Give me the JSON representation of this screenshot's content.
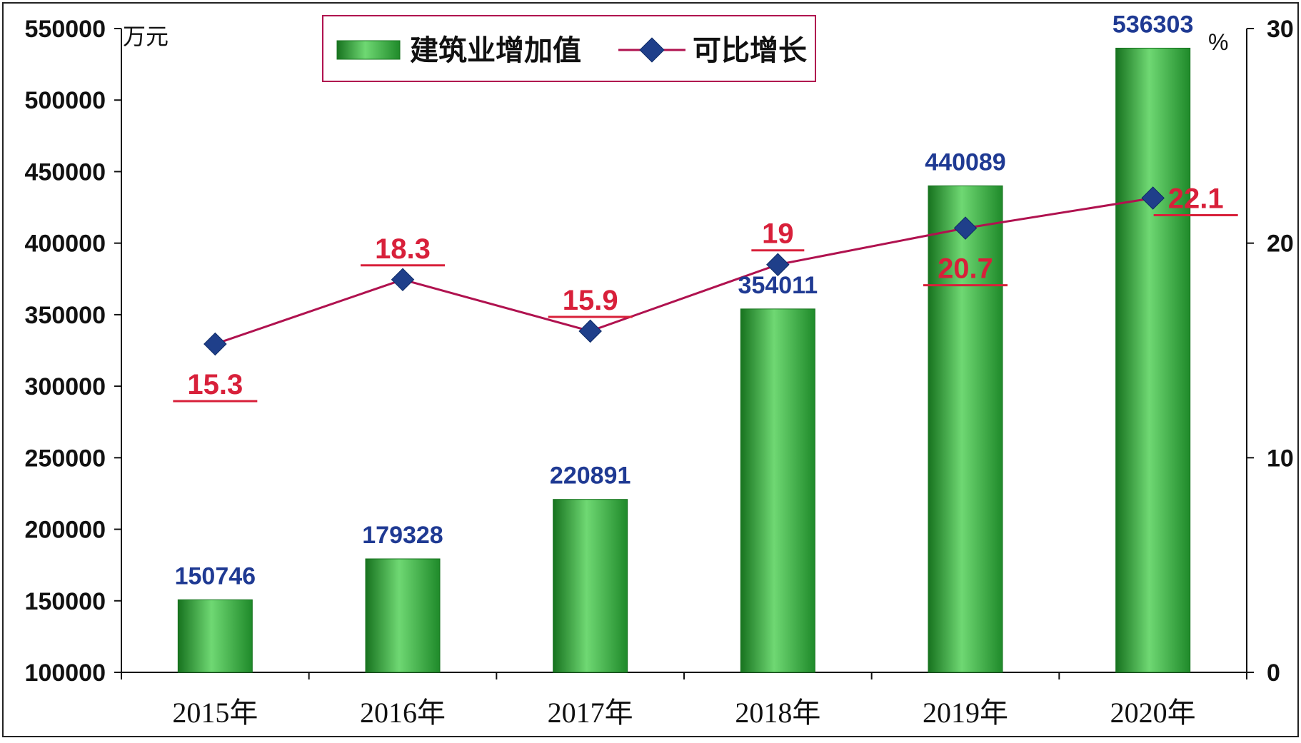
{
  "chart_data": {
    "type": "bar",
    "categories": [
      "2015年",
      "2016年",
      "2017年",
      "2018年",
      "2019年",
      "2020年"
    ],
    "series": [
      {
        "name": "建筑业增加值",
        "type": "bar",
        "axis": "left",
        "values": [
          150746,
          179328,
          220891,
          354011,
          440089,
          536303
        ]
      },
      {
        "name": "可比增长",
        "type": "line",
        "axis": "right",
        "values": [
          15.3,
          18.3,
          15.9,
          19,
          20.7,
          22.1
        ]
      }
    ],
    "bar_labels": [
      "150746",
      "179328",
      "220891",
      "354011",
      "440089",
      "536303"
    ],
    "growth_labels": [
      "15.3",
      "18.3",
      "15.9",
      "19",
      "20.7",
      "22.1"
    ],
    "left_axis": {
      "unit": "万元",
      "range": [
        100000,
        550000
      ],
      "ticks": [
        100000,
        150000,
        200000,
        250000,
        300000,
        350000,
        400000,
        450000,
        500000,
        550000
      ],
      "tick_labels": [
        "100000",
        "150000",
        "200000",
        "250000",
        "300000",
        "350000",
        "400000",
        "450000",
        "500000",
        "550000"
      ]
    },
    "right_axis": {
      "unit": "%",
      "range": [
        0,
        30
      ],
      "ticks": [
        0,
        10,
        20,
        30
      ],
      "tick_labels": [
        "0",
        "10",
        "20",
        "30"
      ]
    },
    "legend": {
      "position": "top-center",
      "items": [
        "建筑业增加值",
        "可比增长"
      ]
    },
    "grid": false,
    "colors": {
      "bar": "#2e9e3a",
      "bar_light": "#6fd873",
      "bar_dark": "#17731f",
      "line": "#b0124f",
      "marker": "#1f3f8a",
      "bar_label": "#1f3a93",
      "growth_label": "#d8203a",
      "legend_border": "#b0124f"
    }
  }
}
